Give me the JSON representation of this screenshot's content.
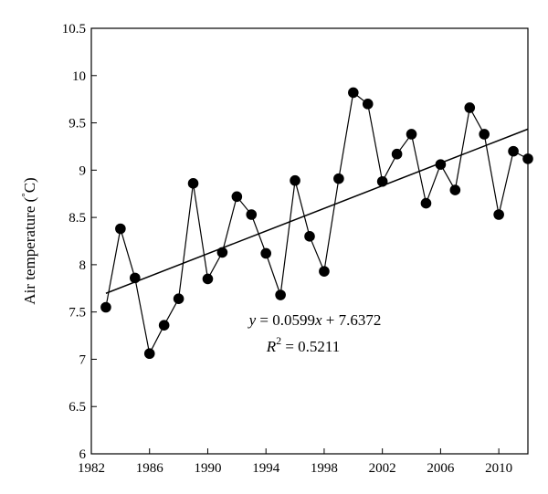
{
  "chart_data": {
    "type": "scatter",
    "xlabel": "",
    "ylabel_prefix": "Air temperature (",
    "ylabel_degree": "°",
    "ylabel_unit": "C)",
    "xlim": [
      1982,
      2012
    ],
    "ylim": [
      6,
      10.5
    ],
    "x_ticks": [
      1982,
      1986,
      1990,
      1994,
      1998,
      2002,
      2006,
      2010
    ],
    "y_ticks": [
      6,
      6.5,
      7,
      7.5,
      8,
      8.5,
      9,
      9.5,
      10,
      10.5
    ],
    "y_tick_labels": [
      "6",
      "6.5",
      "7",
      "7.5",
      "8",
      "8.5",
      "9",
      "9.5",
      "10",
      "10.5"
    ],
    "series": [
      {
        "x": [
          1983,
          1984,
          1985,
          1986,
          1987,
          1988,
          1989,
          1990,
          1991,
          1992,
          1993,
          1994,
          1995,
          1996,
          1997,
          1998,
          1999,
          2000,
          2001,
          2002,
          2003,
          2004,
          2005,
          2006,
          2007,
          2008,
          2009,
          2010,
          2011,
          2012
        ],
        "y": [
          7.55,
          8.38,
          7.86,
          7.06,
          7.36,
          7.64,
          8.86,
          7.85,
          8.13,
          8.72,
          8.53,
          8.12,
          7.68,
          8.89,
          8.3,
          7.93,
          8.91,
          9.82,
          9.7,
          8.88,
          9.17,
          9.38,
          8.65,
          9.06,
          8.79,
          9.66,
          9.38,
          8.53,
          9.2,
          9.12
        ]
      }
    ],
    "trendline": {
      "slope": 0.0599,
      "intercept": 7.6372,
      "x_start": 1,
      "x_end": 30
    },
    "equation": {
      "y_var": "y",
      "eq_rest": " = 0.0599",
      "x_var": "x",
      "eq_tail": " + 7.6372",
      "r_var": "R",
      "r_sup": "2",
      "r_tail": " = 0.5211"
    }
  }
}
